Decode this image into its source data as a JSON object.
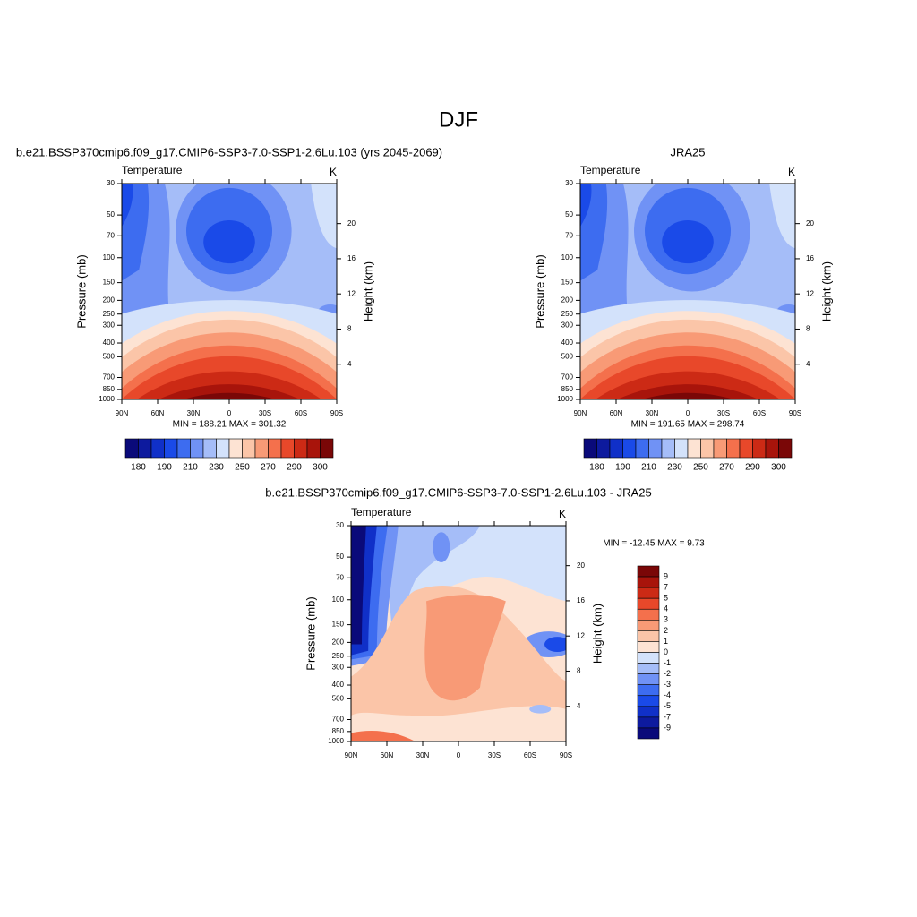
{
  "title": "DJF",
  "panels": [
    {
      "title": "b.e21.BSSP370cmip6.f09_g17.CMIP6-SSP3-7.0-SSP1-2.6Lu.103 (yrs 2045-2069)",
      "left_string": "Temperature",
      "right_string": "K",
      "ylabel": "Pressure (mb)",
      "y2label": "Height (km)",
      "stats": "MIN = 188.21  MAX = 301.32",
      "yscale": "log",
      "ylim": [
        30,
        1000
      ],
      "yticks": [
        30,
        50,
        70,
        100,
        150,
        200,
        250,
        300,
        400,
        500,
        700,
        850,
        1000
      ],
      "y2lim": [
        0,
        24.55
      ],
      "y2ticks": [
        4,
        8,
        12,
        16,
        20
      ],
      "xlim": [
        90,
        -90
      ],
      "xticks": [
        {
          "value": 90,
          "label": "90N"
        },
        {
          "value": 60,
          "label": "60N"
        },
        {
          "value": 30,
          "label": "30N"
        },
        0,
        {
          "value": -30,
          "label": "30S"
        },
        {
          "value": -60,
          "label": "60S"
        },
        {
          "value": -90,
          "label": "90S"
        }
      ],
      "colorbar": {
        "orientation": "horizontal",
        "labels": [
          180,
          190,
          210,
          230,
          250,
          270,
          290,
          300
        ],
        "colors": [
          "#0a0a7a",
          "#0d1a9e",
          "#1030c8",
          "#1a4ae8",
          "#3d6cf0",
          "#7092f5",
          "#a5bdf8",
          "#d3e2fb",
          "#fde3d3",
          "#fbc5a8",
          "#f89a76",
          "#f4704c",
          "#e8482a",
          "#cc2a15",
          "#a8140b",
          "#7a0707"
        ]
      }
    },
    {
      "title": "JRA25",
      "left_string": "Temperature",
      "right_string": "K",
      "ylabel": "Pressure (mb)",
      "y2label": "Height (km)",
      "stats": "MIN = 191.65  MAX = 298.74",
      "yscale": "log",
      "ylim": [
        30,
        1000
      ],
      "yticks": [
        30,
        50,
        70,
        100,
        150,
        200,
        250,
        300,
        400,
        500,
        700,
        850,
        1000
      ],
      "y2lim": [
        0,
        24.55
      ],
      "y2ticks": [
        4,
        8,
        12,
        16,
        20
      ],
      "xlim": [
        90,
        -90
      ],
      "xticks": [
        {
          "value": 90,
          "label": "90N"
        },
        {
          "value": 60,
          "label": "60N"
        },
        {
          "value": 30,
          "label": "30N"
        },
        0,
        {
          "value": -30,
          "label": "30S"
        },
        {
          "value": -60,
          "label": "60S"
        },
        {
          "value": -90,
          "label": "90S"
        }
      ],
      "colorbar": {
        "orientation": "horizontal",
        "labels": [
          180,
          190,
          210,
          230,
          250,
          270,
          290,
          300
        ],
        "colors": [
          "#0a0a7a",
          "#0d1a9e",
          "#1030c8",
          "#1a4ae8",
          "#3d6cf0",
          "#7092f5",
          "#a5bdf8",
          "#d3e2fb",
          "#fde3d3",
          "#fbc5a8",
          "#f89a76",
          "#f4704c",
          "#e8482a",
          "#cc2a15",
          "#a8140b",
          "#7a0707"
        ]
      }
    },
    {
      "title": "b.e21.BSSP370cmip6.f09_g17.CMIP6-SSP3-7.0-SSP1-2.6Lu.103 - JRA25",
      "left_string": "Temperature",
      "right_string": "K",
      "ylabel": "Pressure (mb)",
      "y2label": "Height (km)",
      "stats": "MIN = -12.45  MAX =   9.73",
      "yscale": "log",
      "ylim": [
        30,
        1000
      ],
      "yticks": [
        30,
        50,
        70,
        100,
        150,
        200,
        250,
        300,
        400,
        500,
        700,
        850,
        1000
      ],
      "y2lim": [
        0,
        24.55
      ],
      "y2ticks": [
        4,
        8,
        12,
        16,
        20
      ],
      "xlim": [
        90,
        -90
      ],
      "xticks": [
        {
          "value": 90,
          "label": "90N"
        },
        {
          "value": 60,
          "label": "60N"
        },
        {
          "value": 30,
          "label": "30N"
        },
        0,
        {
          "value": -30,
          "label": "30S"
        },
        {
          "value": -60,
          "label": "60S"
        },
        {
          "value": -90,
          "label": "90S"
        }
      ],
      "colorbar": {
        "orientation": "vertical",
        "labels": [
          9,
          7,
          5,
          4,
          3,
          2,
          1,
          0,
          -1,
          -2,
          -3,
          -4,
          -5,
          -7,
          -9
        ],
        "colors": [
          "#7a0707",
          "#a8140b",
          "#cc2a15",
          "#e8482a",
          "#f4704c",
          "#f89a76",
          "#fbc5a8",
          "#fde3d3",
          "#d3e2fb",
          "#a5bdf8",
          "#7092f5",
          "#3d6cf0",
          "#1a4ae8",
          "#1030c8",
          "#0d1a9e",
          "#0a0a7a"
        ]
      }
    }
  ]
}
